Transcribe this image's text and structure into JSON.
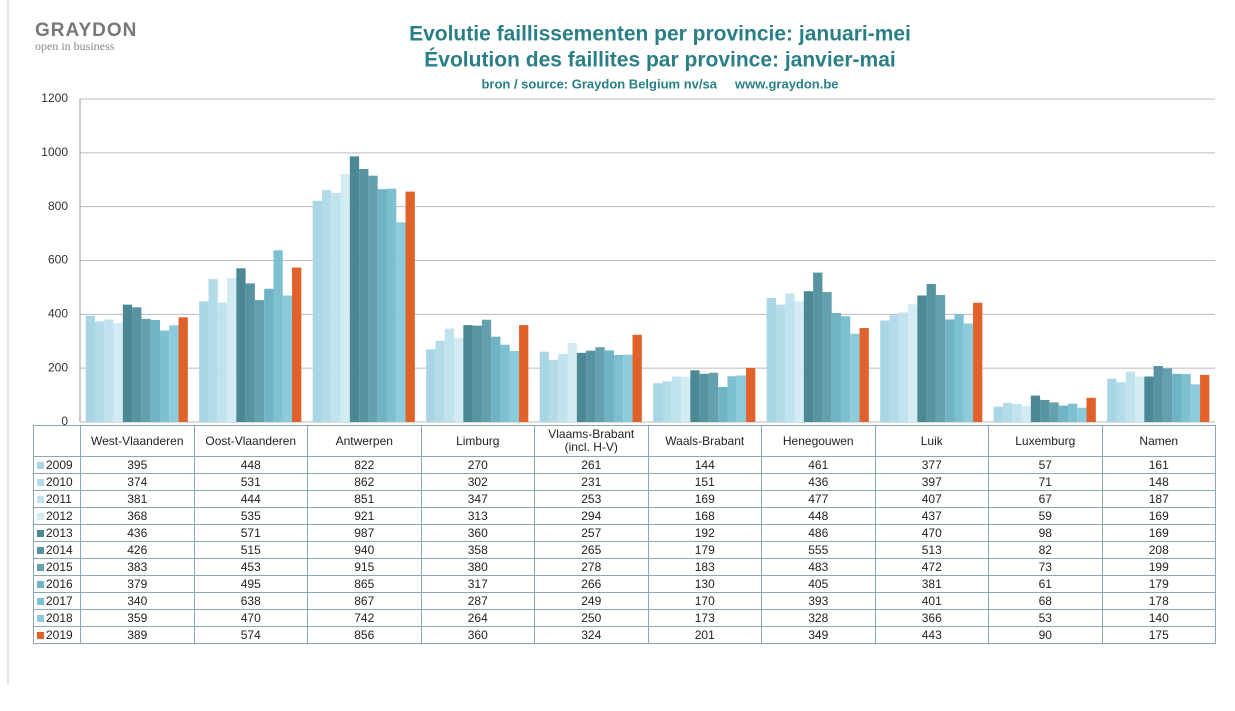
{
  "logo": {
    "name": "GRAYDON",
    "tagline": "open in business"
  },
  "chart_data": {
    "type": "bar",
    "title": "Evolutie faillissementen per provincie: januari-mei",
    "subtitle": "Évolution des faillites par province: janvier-mai",
    "caption": "bron / source: Graydon Belgium nv/sa     www.graydon.be",
    "categories": [
      "West-Vlaanderen",
      "Oost-Vlaanderen",
      "Antwerpen",
      "Limburg",
      "Vlaams-Brabant (incl. H-V)",
      "Waals-Brabant",
      "Henegouwen",
      "Luik",
      "Luxemburg",
      "Namen"
    ],
    "series": [
      {
        "name": "2009",
        "color": "#a9d6e4",
        "values": [
          395,
          448,
          822,
          270,
          261,
          144,
          461,
          377,
          57,
          161
        ]
      },
      {
        "name": "2010",
        "color": "#b3dce8",
        "values": [
          374,
          531,
          862,
          302,
          231,
          151,
          436,
          397,
          71,
          148
        ]
      },
      {
        "name": "2011",
        "color": "#c1e3ed",
        "values": [
          381,
          444,
          851,
          347,
          253,
          169,
          477,
          407,
          67,
          187
        ]
      },
      {
        "name": "2012",
        "color": "#d3ebf2",
        "values": [
          368,
          535,
          921,
          313,
          294,
          168,
          448,
          437,
          59,
          169
        ]
      },
      {
        "name": "2013",
        "color": "#4c8794",
        "values": [
          436,
          571,
          987,
          360,
          257,
          192,
          486,
          470,
          98,
          169
        ]
      },
      {
        "name": "2014",
        "color": "#5893a1",
        "values": [
          426,
          515,
          940,
          358,
          265,
          179,
          555,
          513,
          82,
          208
        ]
      },
      {
        "name": "2015",
        "color": "#64a0ae",
        "values": [
          383,
          453,
          915,
          380,
          278,
          183,
          483,
          472,
          73,
          199
        ]
      },
      {
        "name": "2016",
        "color": "#6fb3c5",
        "values": [
          379,
          495,
          865,
          317,
          266,
          130,
          405,
          381,
          61,
          179
        ]
      },
      {
        "name": "2017",
        "color": "#7cc0d2",
        "values": [
          340,
          638,
          867,
          287,
          249,
          170,
          393,
          401,
          68,
          178
        ]
      },
      {
        "name": "2018",
        "color": "#8ccbdb",
        "values": [
          359,
          470,
          742,
          264,
          250,
          173,
          328,
          366,
          53,
          140
        ]
      },
      {
        "name": "2019",
        "color": "#e0622a",
        "values": [
          389,
          574,
          856,
          360,
          324,
          201,
          349,
          443,
          90,
          175
        ]
      }
    ],
    "ylim": [
      0,
      1200
    ],
    "yticks": [
      0,
      200,
      400,
      600,
      800,
      1000,
      1200
    ],
    "grid": true
  }
}
